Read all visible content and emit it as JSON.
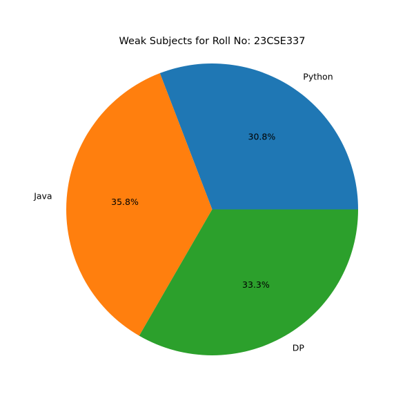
{
  "chart_data": {
    "type": "pie",
    "title": "Weak Subjects for Roll No: 23CSE337",
    "categories": [
      "Python",
      "Java",
      "DP"
    ],
    "values": [
      30.8,
      35.8,
      33.3
    ],
    "percent_labels": [
      "30.8%",
      "35.8%",
      "33.3%"
    ],
    "colors": [
      "#1f77b4",
      "#ff7f0e",
      "#2ca02c"
    ],
    "start_angle_deg": 0,
    "direction": "counterclockwise",
    "legend": "none"
  }
}
